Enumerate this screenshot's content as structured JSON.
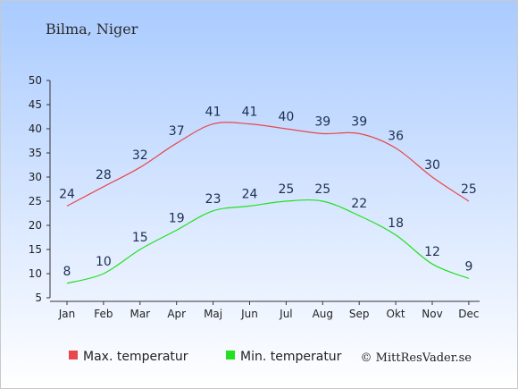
{
  "chart_data": {
    "type": "line",
    "title": "Bilma, Niger",
    "categories": [
      "Jan",
      "Feb",
      "Mar",
      "Apr",
      "Maj",
      "Jun",
      "Jul",
      "Aug",
      "Sep",
      "Okt",
      "Nov",
      "Dec"
    ],
    "series": [
      {
        "name": "Max. temperatur",
        "color": "#e8474c",
        "values": [
          24,
          28,
          32,
          37,
          41,
          41,
          40,
          39,
          39,
          36,
          30,
          25
        ]
      },
      {
        "name": "Min. temperatur",
        "color": "#22e01e",
        "values": [
          8,
          10,
          15,
          19,
          23,
          24,
          25,
          25,
          22,
          18,
          12,
          9
        ]
      }
    ],
    "yticks": [
      5,
      10,
      15,
      20,
      25,
      30,
      35,
      40,
      45,
      50
    ],
    "ylim": [
      5,
      50
    ],
    "grid": false,
    "legend_position": "bottom-left",
    "credit": "© MittResVader.se"
  }
}
